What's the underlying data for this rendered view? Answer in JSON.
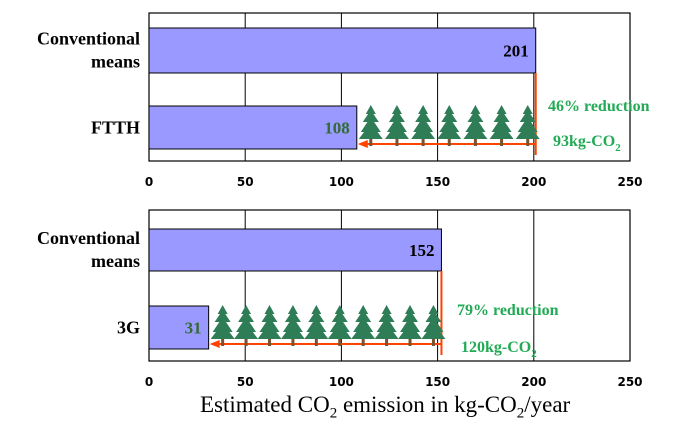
{
  "colors": {
    "bar": "#9999ff",
    "bar_edge": "#000000",
    "arrow": "#ff4400",
    "annotation": "#22aa55",
    "tree": "#2e7d57",
    "trunk": "#7a5230",
    "grid": "#000000"
  },
  "xlabel": {
    "pre": "Estimated CO",
    "sub1": "2",
    "mid": " emission in kg-CO",
    "sub2": "2",
    "post": "/year"
  },
  "chart_data": [
    {
      "type": "bar",
      "orientation": "horizontal",
      "categories": [
        "Conventional means",
        "FTTH"
      ],
      "values": [
        201,
        108
      ],
      "xlim": [
        0,
        250
      ],
      "xticks": [
        "0",
        "50",
        "100",
        "150",
        "200",
        "250"
      ],
      "grid": true,
      "annotations": {
        "reduction_pct": "46% reduction",
        "reduction_amount_text": "93kg-CO",
        "reduction_amount_sub": "2"
      }
    },
    {
      "type": "bar",
      "orientation": "horizontal",
      "categories": [
        "Conventional means",
        "3G"
      ],
      "values": [
        152,
        31
      ],
      "xlim": [
        0,
        250
      ],
      "xticks": [
        "0",
        "50",
        "100",
        "150",
        "200",
        "250"
      ],
      "grid": true,
      "annotations": {
        "reduction_pct": "79% reduction",
        "reduction_amount_text": "120kg-CO",
        "reduction_amount_sub": "2"
      }
    }
  ]
}
